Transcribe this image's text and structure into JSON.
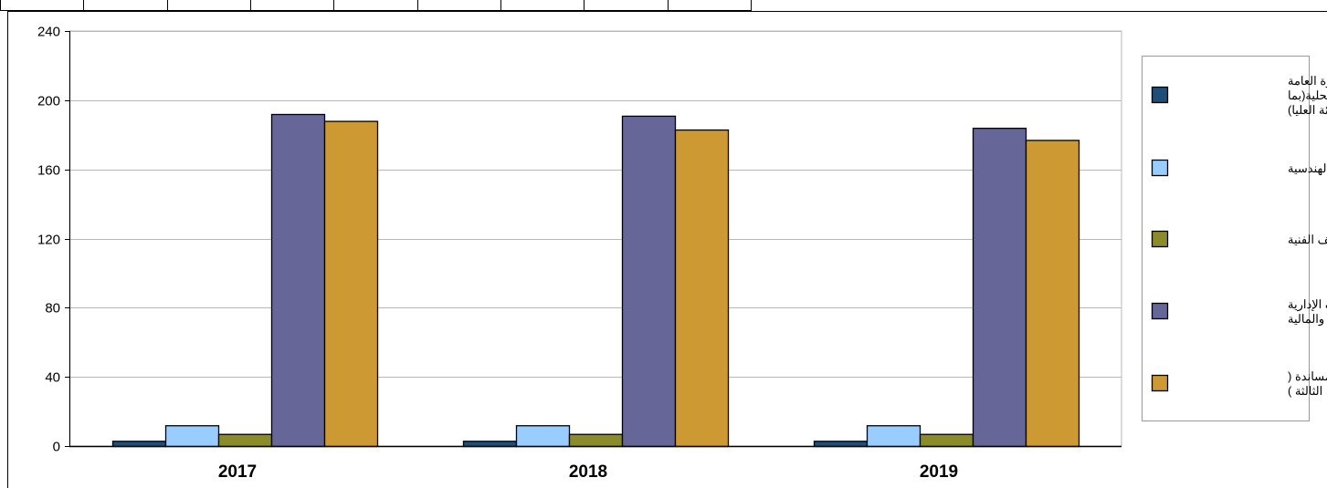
{
  "chart_data": {
    "type": "bar",
    "title": "",
    "xlabel": "",
    "ylabel": "",
    "categories": [
      "2017",
      "2018",
      "2019"
    ],
    "ylim": [
      0,
      240
    ],
    "yticks": [
      0,
      40,
      80,
      120,
      160,
      200,
      240
    ],
    "grid": true,
    "legend_position": "right",
    "series": [
      {
        "name": "وظائف الإدارة العامة والإدارة المحلية(بما فيها الفئة العليا)",
        "color": "#1f4e79",
        "values": [
          3,
          3,
          3
        ]
      },
      {
        "name": "الوظائف الهندسية",
        "color": "#99ccff",
        "values": [
          12,
          12,
          12
        ]
      },
      {
        "name": "الوظائف الفنية",
        "color": "#8b8b2a",
        "values": [
          7,
          7,
          7
        ]
      },
      {
        "name": "الوظائف الإدارية والمالية",
        "color": "#666699",
        "values": [
          192,
          191,
          184
        ]
      },
      {
        "name": "الوظائف المساندة ( الفئة الثالثة )",
        "color": "#cc9933",
        "values": [
          188,
          183,
          177
        ]
      }
    ]
  }
}
